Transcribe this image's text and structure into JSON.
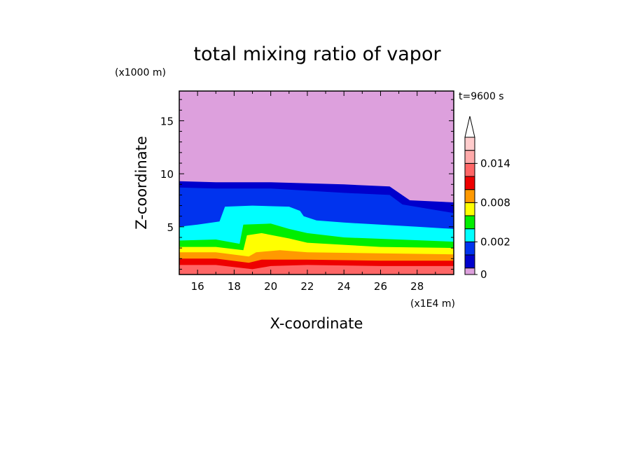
{
  "chart_data": {
    "type": "heatmap",
    "title": "total mixing ratio of vapor",
    "time_label": "t=9600 s",
    "xlabel": "X-coordinate",
    "ylabel": "Z-coordinate",
    "x_unit": "(x1E4 m)",
    "y_unit": "(x1000 m)",
    "xlim": [
      15,
      30
    ],
    "ylim": [
      0.5,
      17.8
    ],
    "x_ticks": [
      16,
      18,
      20,
      22,
      24,
      26,
      28
    ],
    "y_ticks": [
      5,
      10,
      15
    ],
    "colorbar": {
      "levels": [
        0,
        0.001,
        0.002,
        0.004,
        0.006,
        0.008,
        0.01,
        0.012,
        0.014,
        0.016,
        0.018
      ],
      "labels": [
        "0",
        "0.002",
        "0.008",
        "0.014"
      ],
      "label_values": [
        0,
        0.002,
        0.008,
        0.014
      ],
      "colors": [
        "#0000cc",
        "#0033ee",
        "#00ffff",
        "#00ee00",
        "#ffff00",
        "#ff9900",
        "#ee0000",
        "#ff6666",
        "#ffaaaa",
        "#ffcccc"
      ],
      "below_color": "#dda0dd",
      "extend": "max"
    },
    "layers": [
      {
        "name": "0-0.001",
        "color": "#0000cc",
        "top": [
          [
            15,
            9.3
          ],
          [
            17,
            9.2
          ],
          [
            20,
            9.2
          ],
          [
            24,
            9.0
          ],
          [
            26.5,
            8.8
          ],
          [
            27.6,
            7.5
          ],
          [
            30,
            7.3
          ]
        ]
      },
      {
        "name": "0.001-0.002",
        "color": "#0033ee",
        "top": [
          [
            15,
            8.7
          ],
          [
            17,
            8.6
          ],
          [
            20,
            8.6
          ],
          [
            24,
            8.2
          ],
          [
            26.5,
            8.0
          ],
          [
            27.2,
            7.1
          ],
          [
            30,
            6.3
          ]
        ]
      },
      {
        "name": "0.002-0.004",
        "color": "#00ffff",
        "top": [
          [
            15,
            5.0
          ],
          [
            16,
            5.2
          ],
          [
            17.2,
            5.5
          ],
          [
            17.5,
            6.9
          ],
          [
            19,
            7.0
          ],
          [
            21,
            6.9
          ],
          [
            21.6,
            6.5
          ],
          [
            21.8,
            6.0
          ],
          [
            22.5,
            5.6
          ],
          [
            24,
            5.4
          ],
          [
            28,
            5.0
          ],
          [
            30,
            4.8
          ]
        ]
      },
      {
        "name": "0.004-0.006",
        "color": "#00ee00",
        "top": [
          [
            15,
            3.7
          ],
          [
            17,
            3.8
          ],
          [
            18.3,
            3.4
          ],
          [
            18.5,
            5.2
          ],
          [
            20,
            5.3
          ],
          [
            21,
            4.8
          ],
          [
            22,
            4.4
          ],
          [
            24,
            4.0
          ],
          [
            30,
            3.6
          ]
        ]
      },
      {
        "name": "0.006-0.008",
        "color": "#ffff00",
        "top": [
          [
            15,
            3.1
          ],
          [
            17,
            3.1
          ],
          [
            18.5,
            2.8
          ],
          [
            18.7,
            4.2
          ],
          [
            19.5,
            4.4
          ],
          [
            21,
            3.9
          ],
          [
            22,
            3.5
          ],
          [
            26,
            3.1
          ],
          [
            30,
            3.0
          ]
        ]
      },
      {
        "name": "0.008-0.010",
        "color": "#ff9900",
        "top": [
          [
            15,
            2.6
          ],
          [
            17,
            2.6
          ],
          [
            18.8,
            2.2
          ],
          [
            19.2,
            2.6
          ],
          [
            20.5,
            2.8
          ],
          [
            22,
            2.6
          ],
          [
            26,
            2.5
          ],
          [
            30,
            2.4
          ]
        ]
      },
      {
        "name": "0.010-0.012",
        "color": "#ee0000",
        "top": [
          [
            15,
            2.0
          ],
          [
            17,
            2.0
          ],
          [
            18.8,
            1.6
          ],
          [
            19.5,
            1.9
          ],
          [
            22,
            1.9
          ],
          [
            26,
            1.8
          ],
          [
            30,
            1.8
          ]
        ]
      },
      {
        "name": "0.012-0.014",
        "color": "#ff6666",
        "top": [
          [
            15,
            1.4
          ],
          [
            17,
            1.4
          ],
          [
            19,
            1.0
          ],
          [
            20,
            1.3
          ],
          [
            22,
            1.4
          ],
          [
            26,
            1.3
          ],
          [
            30,
            1.3
          ]
        ]
      }
    ]
  }
}
